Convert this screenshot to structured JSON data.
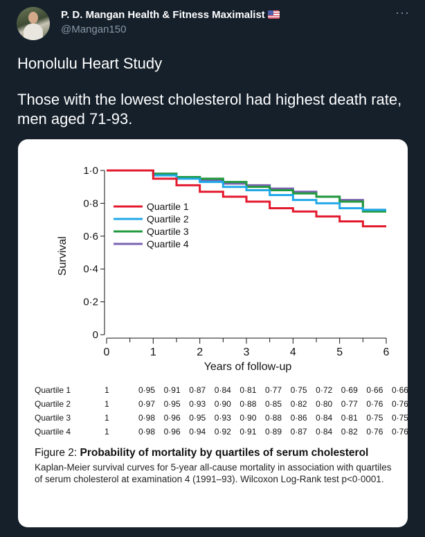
{
  "tweet": {
    "author_name": "P. D. Mangan Health & Fitness Maximalist",
    "handle": "@Mangan150",
    "more_label": "···",
    "text_line1": "Honolulu Heart Study",
    "text_line2": "Those with the lowest cholesterol had highest death rate, men aged 71-93."
  },
  "figure": {
    "table": {
      "rows": [
        {
          "label": "Quartile 1",
          "start": "1",
          "values": [
            "0·95",
            "0·91",
            "0·87",
            "0·84",
            "0·81",
            "0·77",
            "0·75",
            "0·72",
            "0·69",
            "0·66",
            "0·66"
          ]
        },
        {
          "label": "Quartile 2",
          "start": "1",
          "values": [
            "0·97",
            "0·95",
            "0·93",
            "0·90",
            "0·88",
            "0·85",
            "0·82",
            "0·80",
            "0·77",
            "0·76",
            "0·76"
          ]
        },
        {
          "label": "Quartile 3",
          "start": "1",
          "values": [
            "0·98",
            "0·96",
            "0·95",
            "0·93",
            "0·90",
            "0·88",
            "0·86",
            "0·84",
            "0·81",
            "0·75",
            "0·75"
          ]
        },
        {
          "label": "Quartile 4",
          "start": "1",
          "values": [
            "0·98",
            "0·96",
            "0·94",
            "0·92",
            "0·91",
            "0·89",
            "0·87",
            "0·84",
            "0·82",
            "0·76",
            "0·76"
          ]
        }
      ]
    },
    "caption_fig": "Figure 2: ",
    "caption_title": "Probability of mortality by quartiles of serum cholesterol",
    "caption_body": "Kaplan-Meier survival curves for 5-year all-cause mortality in association with quartiles of serum cholesterol at examination 4 (1991–93). Wilcoxon Log-Rank test p<0·0001."
  },
  "chart_data": {
    "type": "line",
    "step": true,
    "title": "",
    "xlabel": "Years of follow-up",
    "ylabel": "Survival",
    "xlim": [
      0,
      6
    ],
    "ylim": [
      0,
      1
    ],
    "x_ticks": [
      0,
      1,
      2,
      3,
      4,
      5,
      6
    ],
    "x_tick_labels": [
      "0",
      "1",
      "2",
      "3",
      "4",
      "5",
      "6"
    ],
    "y_ticks": [
      0,
      0.2,
      0.4,
      0.6,
      0.8,
      1.0
    ],
    "y_tick_labels": [
      "0",
      "0·2",
      "0·4",
      "0·6",
      "0·8",
      "1·0"
    ],
    "x": [
      0,
      1,
      1.5,
      2,
      2.5,
      3,
      3.5,
      4,
      4.5,
      5,
      5.5,
      6
    ],
    "legend_position": "left",
    "series": [
      {
        "name": "Quartile 1",
        "color": "#e3182d",
        "values": [
          1,
          0.95,
          0.91,
          0.87,
          0.84,
          0.81,
          0.77,
          0.75,
          0.72,
          0.69,
          0.66,
          0.66
        ]
      },
      {
        "name": "Quartile 2",
        "color": "#20a8e8",
        "values": [
          1,
          0.97,
          0.95,
          0.93,
          0.9,
          0.88,
          0.85,
          0.82,
          0.8,
          0.77,
          0.76,
          0.76
        ]
      },
      {
        "name": "Quartile 3",
        "color": "#1f9a3c",
        "values": [
          1,
          0.98,
          0.96,
          0.95,
          0.93,
          0.9,
          0.88,
          0.86,
          0.84,
          0.81,
          0.75,
          0.75
        ]
      },
      {
        "name": "Quartile 4",
        "color": "#7a62b0",
        "values": [
          1,
          0.98,
          0.96,
          0.94,
          0.92,
          0.91,
          0.89,
          0.87,
          0.84,
          0.82,
          0.76,
          0.76
        ]
      }
    ]
  }
}
